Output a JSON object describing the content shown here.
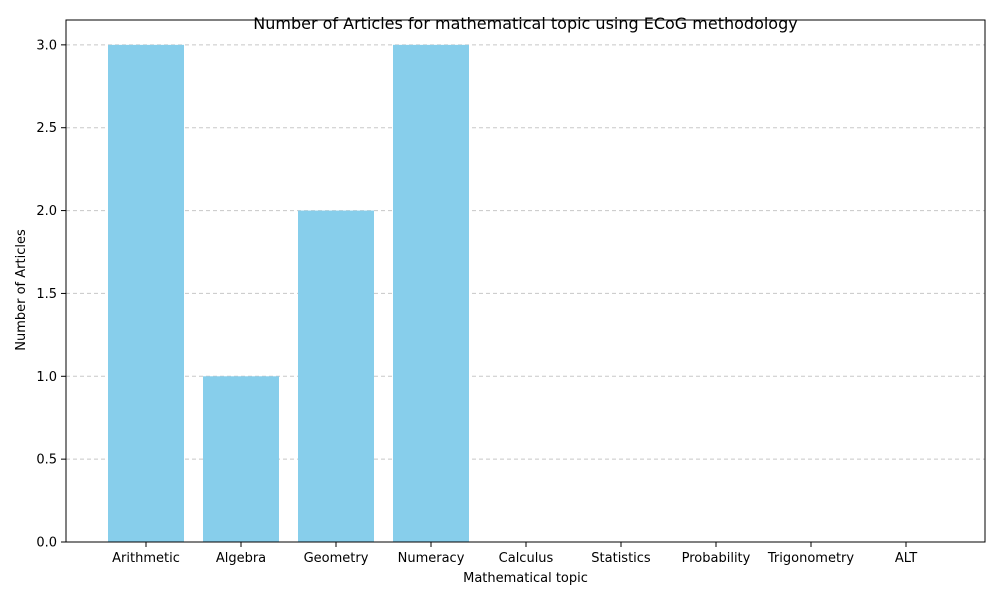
{
  "chart_data": {
    "type": "bar",
    "title": "Number of Articles for mathematical topic using ECoG methodology",
    "xlabel": "Mathematical topic",
    "ylabel": "Number of Articles",
    "categories": [
      "Arithmetic",
      "Algebra",
      "Geometry",
      "Numeracy",
      "Calculus",
      "Statistics",
      "Probability",
      "Trigonometry",
      "ALT"
    ],
    "values": [
      3,
      1,
      2,
      3,
      0,
      0,
      0,
      0,
      0
    ],
    "ylim": [
      0,
      3.15
    ],
    "yticks": [
      "0.0",
      "0.5",
      "1.0",
      "1.5",
      "2.0",
      "2.5",
      "3.0"
    ],
    "grid": "y-dashed",
    "bar_color": "#87CEEB",
    "grid_color": "#c8c8c8"
  }
}
